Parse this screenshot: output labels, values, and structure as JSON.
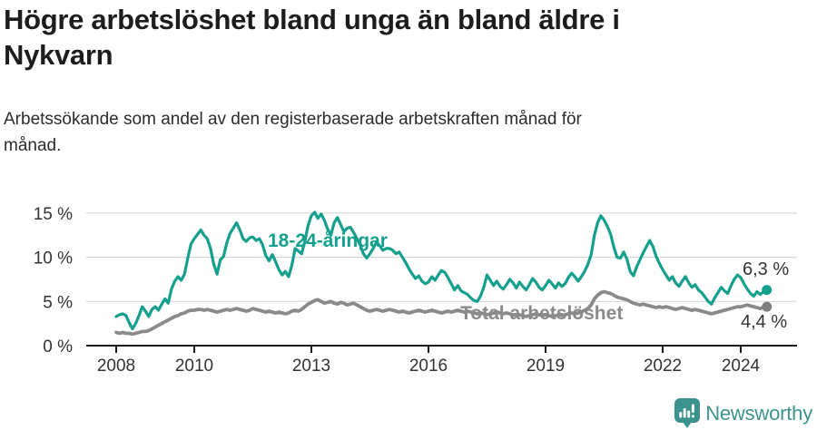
{
  "header": {
    "title_lines": [
      "Högre arbetslöshet bland unga än bland äldre i",
      "Nykvarn"
    ],
    "subtitle_lines": [
      "Arbetssökande som andel av den registerbaserade arbetskraften månad för",
      "månad."
    ]
  },
  "chart_data": {
    "type": "line",
    "title": "Högre arbetslöshet bland unga än bland äldre i Nykvarn",
    "subtitle": "Arbetssökande som andel av den registerbaserade arbetskraften månad för månad.",
    "unit": "%",
    "frequency": "monthly",
    "x_start": "2008-01",
    "x_end": "2024-09",
    "x_ticks": [
      2008,
      2010,
      2013,
      2016,
      2019,
      2022,
      2024
    ],
    "y_ticks": [
      {
        "value": 0,
        "label": "0 %"
      },
      {
        "value": 5,
        "label": "5 %"
      },
      {
        "value": 10,
        "label": "10 %"
      },
      {
        "value": 15,
        "label": "15 %"
      }
    ],
    "ylim": [
      0,
      16
    ],
    "grid": true,
    "series": [
      {
        "name": "18-24-åringar",
        "color": "#15a08e",
        "dot_color": "#15a08e",
        "end_label": "6,3 %",
        "last_value": 6.3,
        "values": [
          3.3,
          3.5,
          3.6,
          3.4,
          2.6,
          1.9,
          2.5,
          3.4,
          4.4,
          3.9,
          3.3,
          4.1,
          4.4,
          4.0,
          4.7,
          5.3,
          4.8,
          6.4,
          7.3,
          7.8,
          7.4,
          8.1,
          9.9,
          11.5,
          12.1,
          12.6,
          13.1,
          12.5,
          12.1,
          11.0,
          9.2,
          8.1,
          9.7,
          10.1,
          11.6,
          12.7,
          13.3,
          13.9,
          13.1,
          12.1,
          11.8,
          12.2,
          12.3,
          11.9,
          12.1,
          11.4,
          10.2,
          9.6,
          10.3,
          9.5,
          8.6,
          8.0,
          8.4,
          7.8,
          9.1,
          11.0,
          10.7,
          10.4,
          11.8,
          13.6,
          14.7,
          15.1,
          14.4,
          14.9,
          14.2,
          13.2,
          12.5,
          13.9,
          14.5,
          13.7,
          12.9,
          13.3,
          13.4,
          12.8,
          12.1,
          11.4,
          10.4,
          9.9,
          10.4,
          11.0,
          11.7,
          11.3,
          10.8,
          11.0,
          11.0,
          10.8,
          10.4,
          10.6,
          10.0,
          9.4,
          8.7,
          8.1,
          7.6,
          7.9,
          7.3,
          7.0,
          7.2,
          7.8,
          7.4,
          8.0,
          8.5,
          8.3,
          7.7,
          7.0,
          6.3,
          6.8,
          6.2,
          6.0,
          5.8,
          5.4,
          5.1,
          5.0,
          5.6,
          6.6,
          8.0,
          7.4,
          6.8,
          7.3,
          6.7,
          6.4,
          6.9,
          7.5,
          7.1,
          6.5,
          7.2,
          6.7,
          6.3,
          6.9,
          7.6,
          7.2,
          6.6,
          6.3,
          6.8,
          7.4,
          7.0,
          6.5,
          7.1,
          6.7,
          7.0,
          7.7,
          8.2,
          7.8,
          7.3,
          7.8,
          8.4,
          9.2,
          10.3,
          12.5,
          13.9,
          14.7,
          14.2,
          13.5,
          12.6,
          11.1,
          10.0,
          9.9,
          10.6,
          9.8,
          8.4,
          7.9,
          8.9,
          9.7,
          10.5,
          11.2,
          11.9,
          11.2,
          10.1,
          9.3,
          8.6,
          8.0,
          7.4,
          7.8,
          7.1,
          6.7,
          7.3,
          7.8,
          7.1,
          6.6,
          6.9,
          6.3,
          6.0,
          5.5,
          5.0,
          4.7,
          5.4,
          6.0,
          6.6,
          6.2,
          5.9,
          6.8,
          7.5,
          8.0,
          7.7,
          7.0,
          6.4,
          5.9,
          5.6,
          6.1,
          5.8,
          6.1,
          6.3
        ]
      },
      {
        "name": "Total arbetslöshet",
        "color": "#8a8a8a",
        "dot_color": "#7d7d7d",
        "end_label": "4,4 %",
        "last_value": 4.4,
        "values": [
          1.5,
          1.4,
          1.5,
          1.4,
          1.4,
          1.3,
          1.4,
          1.5,
          1.6,
          1.6,
          1.7,
          1.9,
          2.1,
          2.3,
          2.5,
          2.7,
          2.9,
          3.1,
          3.3,
          3.4,
          3.6,
          3.7,
          3.9,
          4.0,
          4.0,
          4.1,
          4.1,
          4.0,
          4.1,
          4.0,
          3.9,
          3.8,
          3.9,
          4.0,
          4.1,
          4.0,
          4.1,
          4.2,
          4.1,
          4.0,
          3.9,
          4.0,
          4.2,
          4.1,
          4.0,
          3.9,
          3.8,
          3.9,
          3.8,
          3.7,
          3.8,
          3.7,
          3.6,
          3.7,
          3.9,
          4.0,
          3.9,
          4.1,
          4.4,
          4.7,
          4.9,
          5.1,
          5.2,
          5.0,
          4.8,
          4.9,
          5.0,
          4.8,
          4.7,
          4.9,
          4.8,
          4.6,
          4.7,
          4.8,
          4.6,
          4.4,
          4.2,
          4.0,
          3.9,
          4.0,
          4.1,
          4.0,
          3.9,
          4.0,
          4.1,
          4.0,
          3.9,
          3.8,
          3.9,
          3.8,
          3.7,
          3.8,
          3.9,
          4.0,
          3.9,
          3.8,
          3.9,
          4.0,
          3.9,
          3.8,
          3.7,
          3.8,
          3.9,
          3.8,
          3.9,
          4.0,
          3.9,
          3.8,
          3.9,
          3.8,
          3.7,
          3.6,
          3.7,
          3.6,
          3.5,
          3.6,
          3.7,
          3.8,
          3.7,
          3.6,
          3.7,
          3.6,
          3.5,
          3.4,
          3.5,
          3.4,
          3.3,
          3.4,
          3.5,
          3.6,
          3.5,
          3.4,
          3.5,
          3.4,
          3.3,
          3.4,
          3.5,
          3.4,
          3.5,
          3.6,
          3.7,
          3.6,
          3.7,
          3.8,
          4.0,
          4.2,
          4.6,
          5.3,
          5.7,
          6.0,
          6.1,
          6.0,
          5.9,
          5.7,
          5.5,
          5.4,
          5.3,
          5.2,
          5.0,
          4.8,
          4.7,
          4.6,
          4.7,
          4.6,
          4.5,
          4.4,
          4.3,
          4.4,
          4.3,
          4.4,
          4.3,
          4.2,
          4.1,
          4.2,
          4.3,
          4.2,
          4.1,
          4.0,
          4.1,
          4.0,
          3.9,
          3.8,
          3.7,
          3.6,
          3.7,
          3.8,
          3.9,
          4.0,
          4.1,
          4.2,
          4.3,
          4.4,
          4.4,
          4.5,
          4.6,
          4.5,
          4.4,
          4.3,
          4.2,
          4.3,
          4.4
        ]
      }
    ]
  },
  "footer": {
    "brand": "Newsworthy",
    "brand_color": "#3c938e",
    "icon": "newsworthy-bubble-chart-icon"
  }
}
